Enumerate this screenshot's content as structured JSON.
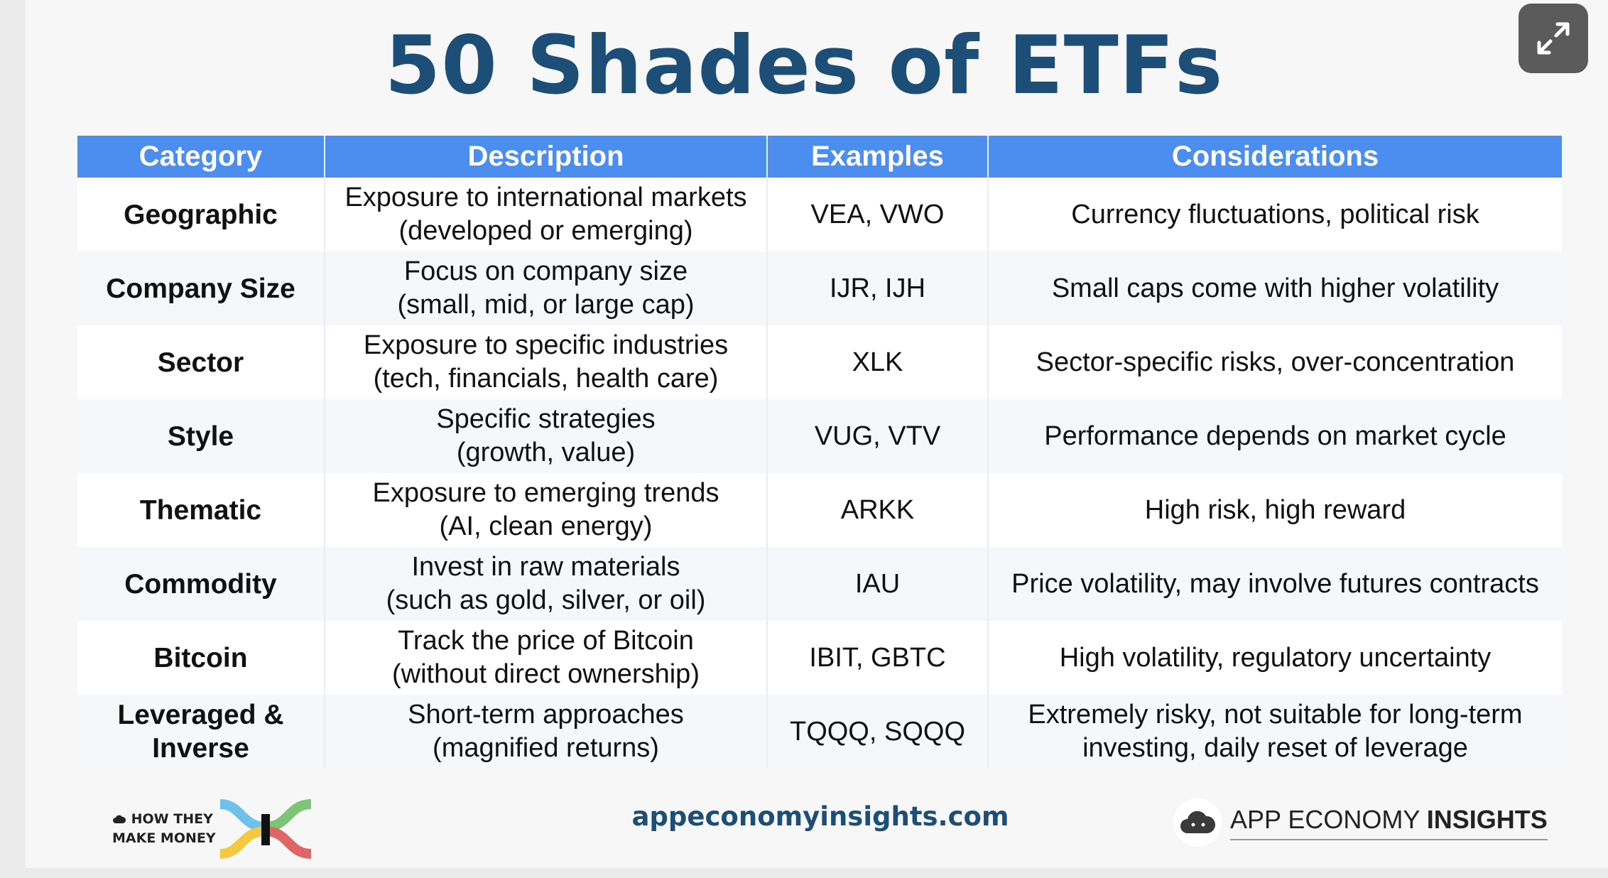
{
  "title": "50 Shades of ETFs",
  "table": {
    "headers": [
      "Category",
      "Description",
      "Examples",
      "Considerations"
    ],
    "rows": [
      {
        "category": [
          "Geographic"
        ],
        "description": [
          "Exposure to international markets",
          "(developed or emerging)"
        ],
        "examples": "VEA, VWO",
        "considerations": [
          "Currency fluctuations, political risk"
        ]
      },
      {
        "category": [
          "Company Size"
        ],
        "description": [
          "Focus on company size",
          "(small, mid, or large cap)"
        ],
        "examples": "IJR, IJH",
        "considerations": [
          "Small caps come with higher volatility"
        ]
      },
      {
        "category": [
          "Sector"
        ],
        "description": [
          "Exposure to specific industries",
          "(tech, financials, health care)"
        ],
        "examples": "XLK",
        "considerations": [
          "Sector-specific risks, over-concentration"
        ]
      },
      {
        "category": [
          "Style"
        ],
        "description": [
          "Specific strategies",
          "(growth, value)"
        ],
        "examples": "VUG, VTV",
        "considerations": [
          "Performance depends on market cycle"
        ]
      },
      {
        "category": [
          "Thematic"
        ],
        "description": [
          "Exposure to emerging trends",
          "(AI, clean energy)"
        ],
        "examples": "ARKK",
        "considerations": [
          "High risk, high reward"
        ]
      },
      {
        "category": [
          "Commodity"
        ],
        "description": [
          "Invest in raw materials",
          "(such as gold, silver, or oil)"
        ],
        "examples": "IAU",
        "considerations": [
          "Price volatility, may involve futures contracts"
        ]
      },
      {
        "category": [
          "Bitcoin"
        ],
        "description": [
          "Track the price of Bitcoin",
          "(without direct ownership)"
        ],
        "examples": "IBIT, GBTC",
        "considerations": [
          "High volatility, regulatory uncertainty"
        ]
      },
      {
        "category": [
          "Leveraged &",
          "Inverse"
        ],
        "description": [
          "Short-term approaches",
          "(magnified returns)"
        ],
        "examples": "TQQQ, SQQQ",
        "considerations": [
          "Extremely risky, not suitable for long-term",
          "investing, daily reset of leverage"
        ]
      }
    ]
  },
  "footer": {
    "left_brand": [
      "HOW THEY",
      "MAKE MONEY"
    ],
    "website": "appeconomyinsights.com",
    "right_brand_light": "APP ECONOMY ",
    "right_brand_bold": "INSIGHTS"
  },
  "icons": {
    "expand": "expand-arrows-icon",
    "htm_logo": "sankey-flow-logo-icon",
    "aei_logo": "cloud-logo-icon"
  },
  "colors": {
    "title": "#1d4e78",
    "header_bg": "#4c8ef0",
    "header_text": "#ffffff",
    "expand_button": "#5b5b5b"
  }
}
